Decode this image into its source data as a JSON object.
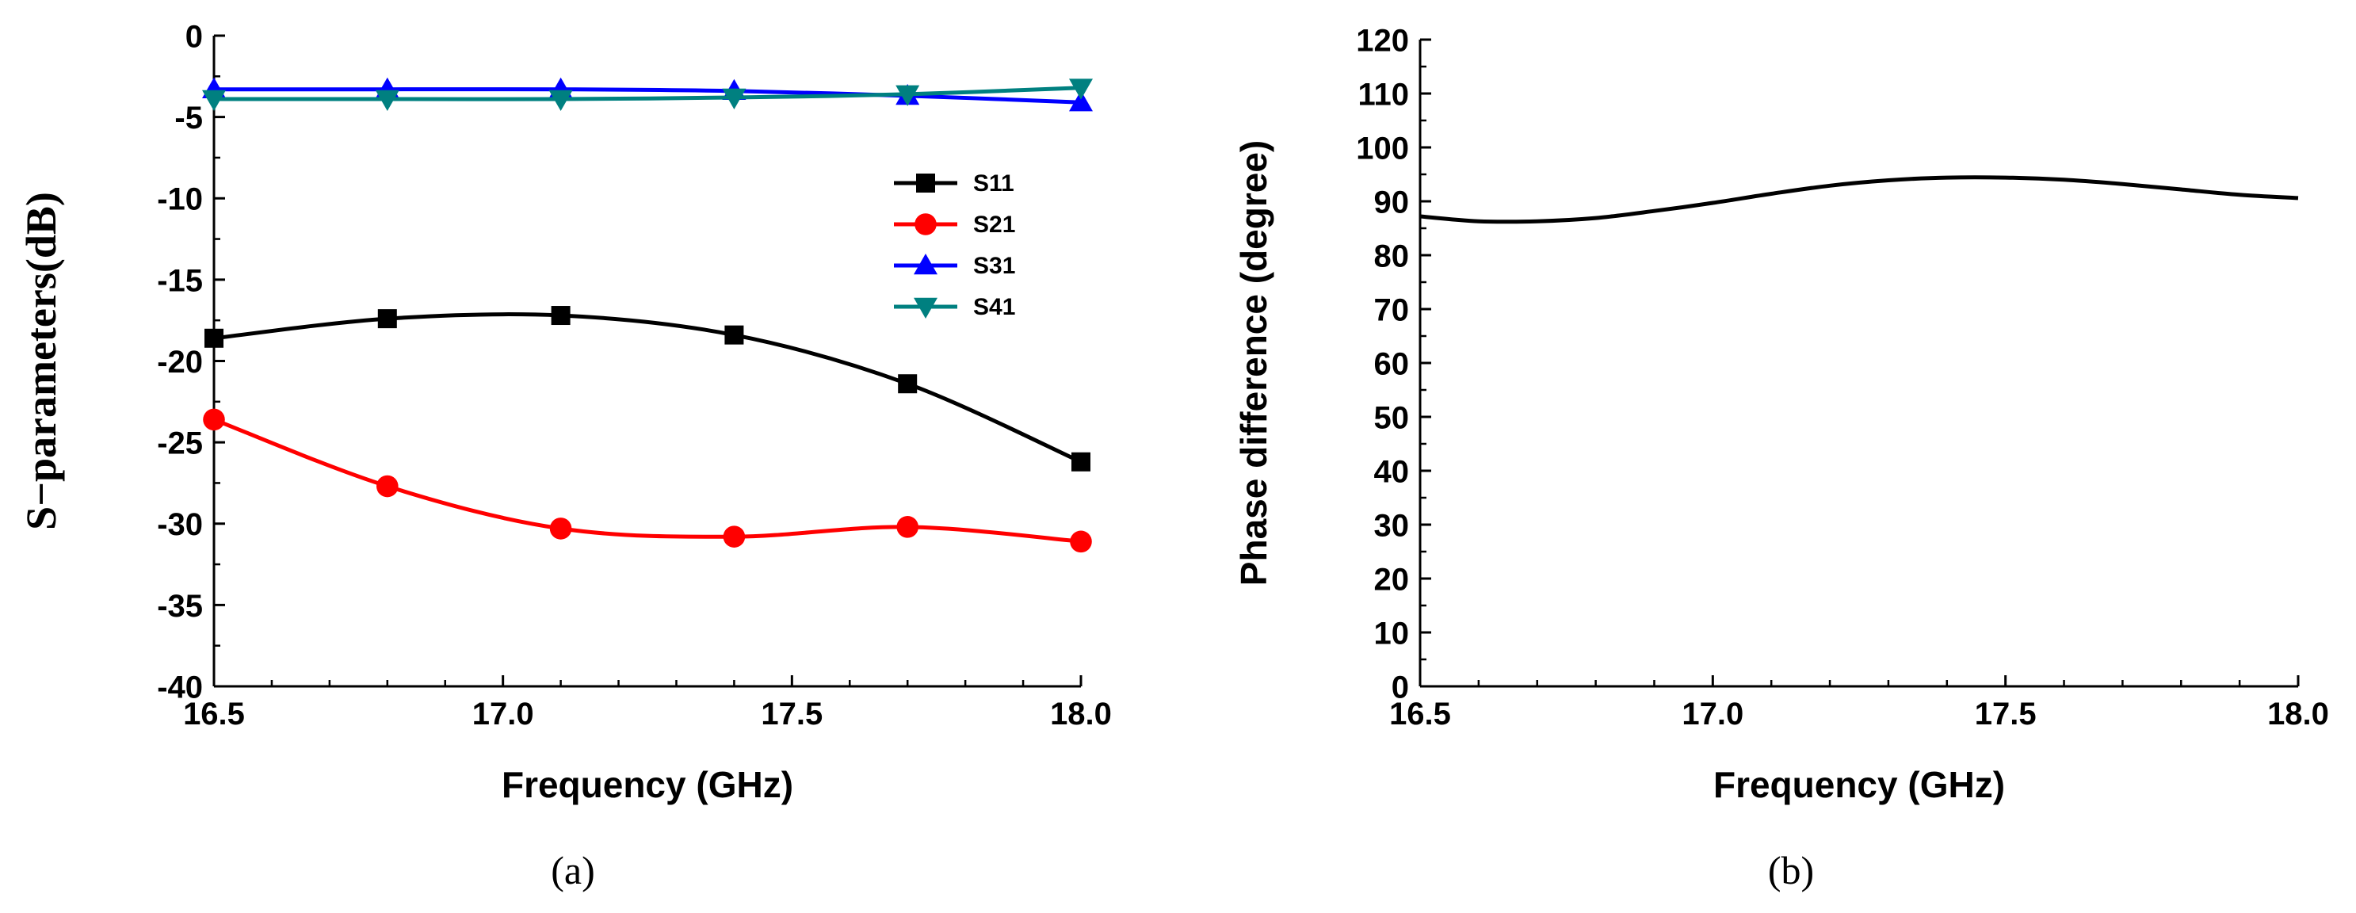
{
  "chart_data": [
    {
      "type": "line",
      "panel_label": "(a)",
      "xlabel": "Frequency (GHz)",
      "ylabel": "S−parameters(dB)",
      "xlim": [
        16.5,
        18.0
      ],
      "ylim": [
        -40,
        0
      ],
      "xticks": [
        "16.5",
        "17.0",
        "17.5",
        "18.0"
      ],
      "yticks": [
        "0",
        "-5",
        "-10",
        "-15",
        "-20",
        "-25",
        "-30",
        "-35",
        "-40"
      ],
      "legend_position": "right-middle",
      "x": [
        16.5,
        16.8,
        17.1,
        17.4,
        17.7,
        18.0
      ],
      "series": [
        {
          "name": "S11",
          "color": "#000000",
          "marker": "square",
          "values": [
            -18.6,
            -17.4,
            -17.2,
            -18.4,
            -21.4,
            -26.2
          ]
        },
        {
          "name": "S21",
          "color": "#ff0000",
          "marker": "circle",
          "values": [
            -23.6,
            -27.7,
            -30.3,
            -30.8,
            -30.2,
            -31.1
          ]
        },
        {
          "name": "S31",
          "color": "#0000ff",
          "marker": "triangle-up",
          "values": [
            -3.3,
            -3.3,
            -3.3,
            -3.4,
            -3.7,
            -4.1
          ]
        },
        {
          "name": "S41",
          "color": "#008080",
          "marker": "triangle-down",
          "values": [
            -3.9,
            -3.9,
            -3.9,
            -3.8,
            -3.6,
            -3.2
          ]
        }
      ]
    },
    {
      "type": "line",
      "panel_label": "(b)",
      "xlabel": "Frequency (GHz)",
      "ylabel": "Phase difference (degree)",
      "xlim": [
        16.5,
        18.0
      ],
      "ylim": [
        0,
        120
      ],
      "xticks": [
        "16.5",
        "17.0",
        "17.5",
        "18.0"
      ],
      "yticks": [
        "0",
        "10",
        "20",
        "30",
        "40",
        "50",
        "60",
        "70",
        "80",
        "90",
        "100",
        "110",
        "120"
      ],
      "x": [
        16.5,
        16.6,
        16.7,
        16.8,
        16.9,
        17.0,
        17.1,
        17.2,
        17.3,
        17.4,
        17.5,
        17.6,
        17.7,
        17.8,
        17.9,
        18.0
      ],
      "series": [
        {
          "name": "Phase difference",
          "color": "#000000",
          "values": [
            87.2,
            86.3,
            86.3,
            86.9,
            88.2,
            89.7,
            91.4,
            92.9,
            93.9,
            94.4,
            94.4,
            94.0,
            93.2,
            92.2,
            91.2,
            90.6
          ]
        }
      ]
    }
  ]
}
